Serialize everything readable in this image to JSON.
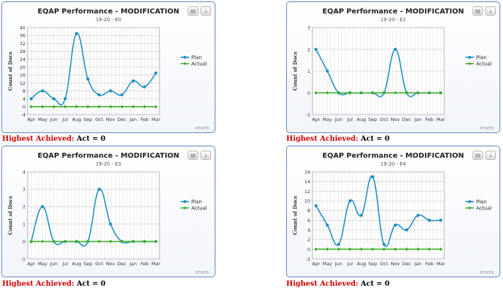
{
  "colors": {
    "plan": "#1f8fc4",
    "actual": "#3fae2a",
    "grid": "#d8d8d8",
    "achieved_label": "#cc0000"
  },
  "icons": {
    "print": "printer-icon",
    "export": "download-icon"
  },
  "panels": [
    {
      "achieved_label": "Highest Achieved:",
      "achieved_value": "Act = 0",
      "chart_data": {
        "type": "line",
        "title": "EQAP Performance - MODIFICATION",
        "subtitle": "19-20 - E0",
        "ylabel": "Count of Docs",
        "categories": [
          "Apr",
          "May",
          "Jun",
          "Jul",
          "Aug",
          "Sep",
          "Oct",
          "Nov",
          "Dec",
          "Jan",
          "Feb",
          "Mar"
        ],
        "yticks": [
          "40",
          "36",
          "32",
          "28",
          "24",
          "20",
          "16",
          "12",
          "8",
          "4",
          "0",
          "-4"
        ],
        "ylim": [
          -4,
          40
        ],
        "grid": true,
        "legend": "right",
        "credit": "PEWEB",
        "series": [
          {
            "name": "Plan",
            "values": [
              4,
              8,
              4,
              4,
              37,
              14,
              6,
              8,
              6,
              13,
              10,
              17
            ]
          },
          {
            "name": "Actual",
            "values": [
              0,
              0,
              0,
              0,
              0,
              0,
              0,
              0,
              0,
              0,
              0,
              0
            ]
          }
        ]
      }
    },
    {
      "achieved_label": "Highest Achieved:",
      "achieved_value": "Act = 0",
      "chart_data": {
        "type": "line",
        "title": "EQAP Performance - MODIFICATION",
        "subtitle": "19-20 - E1",
        "ylabel": "Count of Docs",
        "categories": [
          "Apr",
          "May",
          "Jun",
          "Jul",
          "Aug",
          "Sep",
          "Oct",
          "Nov",
          "Dec",
          "Jan",
          "Feb",
          "Mar"
        ],
        "yticks": [
          "3",
          "2",
          "1",
          "0",
          "-1"
        ],
        "ylim": [
          -1,
          3
        ],
        "grid": true,
        "legend": "right",
        "credit": "PEWEB",
        "series": [
          {
            "name": "Plan",
            "values": [
              2,
              1,
              0,
              0,
              0,
              0,
              0,
              2,
              0,
              0,
              0,
              0
            ]
          },
          {
            "name": "Actual",
            "values": [
              0,
              0,
              0,
              0,
              0,
              0,
              0,
              0,
              0,
              0,
              0,
              0
            ]
          }
        ]
      }
    },
    {
      "achieved_label": "Highest Achieved:",
      "achieved_value": "Act = 0",
      "chart_data": {
        "type": "line",
        "title": "EQAP Performance - MODIFICATION",
        "subtitle": "19-20 - E3",
        "ylabel": "Count of Docs",
        "categories": [
          "Apr",
          "May",
          "Jun",
          "Jul",
          "Aug",
          "Sep",
          "Oct",
          "Nov",
          "Dec",
          "Jan",
          "Feb",
          "Mar"
        ],
        "yticks": [
          "4",
          "3",
          "2",
          "1",
          "0",
          "-1"
        ],
        "ylim": [
          -1,
          4
        ],
        "grid": true,
        "legend": "right",
        "credit": "PEWEB",
        "series": [
          {
            "name": "Plan",
            "values": [
              0,
              2,
              0,
              0,
              0,
              0,
              3,
              1,
              0,
              0,
              0,
              0
            ]
          },
          {
            "name": "Actual",
            "values": [
              0,
              0,
              0,
              0,
              0,
              0,
              0,
              0,
              0,
              0,
              0,
              0
            ]
          }
        ]
      }
    },
    {
      "achieved_label": "Highest Achieved:",
      "achieved_value": "Act = 0",
      "chart_data": {
        "type": "line",
        "title": "EQAP Performance - MODIFICATION",
        "subtitle": "19-20 - E4",
        "ylabel": "Count of Docs",
        "categories": [
          "Apr",
          "May",
          "Jun",
          "Jul",
          "Aug",
          "Sep",
          "Oct",
          "Nov",
          "Dec",
          "Jan",
          "Feb",
          "Mar"
        ],
        "yticks": [
          "16",
          "14",
          "12",
          "10",
          "8",
          "6",
          "4",
          "2",
          "0",
          "-2"
        ],
        "ylim": [
          -2,
          16
        ],
        "grid": true,
        "legend": "right",
        "credit": "PEWEB",
        "series": [
          {
            "name": "Plan",
            "values": [
              9,
              5,
              1,
              10,
              7,
              15,
              1,
              5,
              4,
              7,
              6,
              6
            ]
          },
          {
            "name": "Actual",
            "values": [
              0,
              0,
              0,
              0,
              0,
              0,
              0,
              0,
              0,
              0,
              0,
              0
            ]
          }
        ]
      }
    }
  ]
}
